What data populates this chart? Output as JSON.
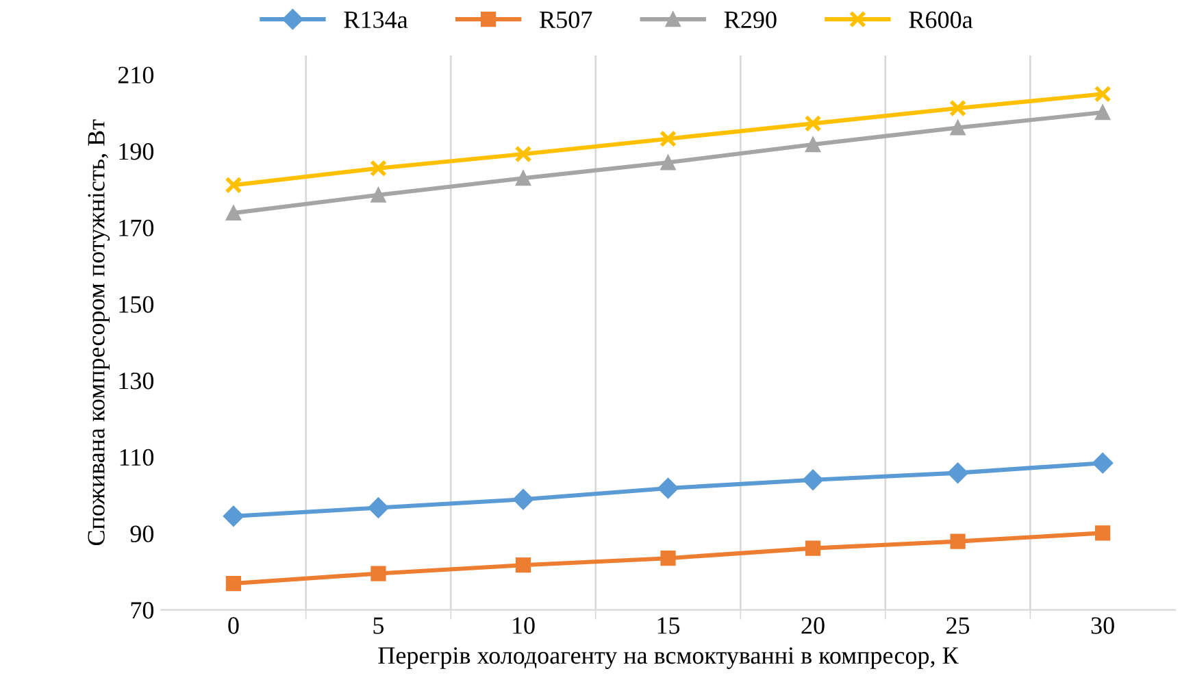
{
  "chart_data": {
    "type": "line",
    "xlabel": "Перегрів холодоагенту на всмоктуванні в компресор, К",
    "ylabel": "Споживана компресором потужність, Вт",
    "categories": [
      "0",
      "5",
      "10",
      "15",
      "20",
      "25",
      "30"
    ],
    "series": [
      {
        "name": "R134a",
        "color": "#5b9bd5",
        "marker": "diamond",
        "values": [
          94.5,
          96.7,
          98.9,
          101.8,
          104.0,
          105.8,
          108.4
        ]
      },
      {
        "name": "R507",
        "color": "#ed7d31",
        "marker": "square",
        "values": [
          76.9,
          79.5,
          81.7,
          83.5,
          86.1,
          87.9,
          90.1
        ]
      },
      {
        "name": "R290",
        "color": "#a5a5a5",
        "marker": "triangle",
        "values": [
          173.8,
          178.5,
          182.9,
          187.0,
          191.7,
          196.1,
          200.1
        ]
      },
      {
        "name": "R600a",
        "color": "#ffc000",
        "marker": "cross",
        "values": [
          181.1,
          185.5,
          189.2,
          193.2,
          197.2,
          201.2,
          204.9
        ]
      }
    ],
    "ylim": [
      70,
      215
    ],
    "yticks": [
      70,
      90,
      110,
      130,
      150,
      170,
      190,
      210
    ],
    "grid": "x",
    "legend": "top"
  }
}
